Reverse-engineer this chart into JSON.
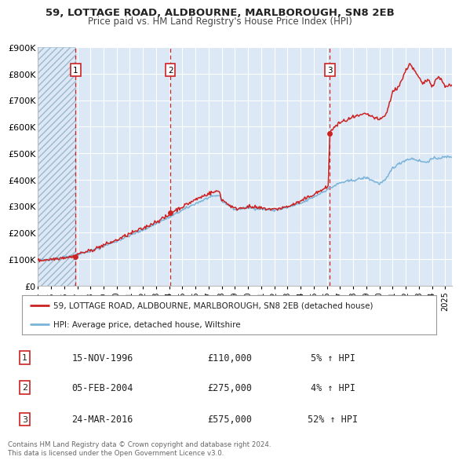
{
  "title": "59, LOTTAGE ROAD, ALDBOURNE, MARLBOROUGH, SN8 2EB",
  "subtitle": "Price paid vs. HM Land Registry's House Price Index (HPI)",
  "x_start": 1994.0,
  "x_end": 2025.5,
  "y_min": 0,
  "y_max": 900000,
  "y_ticks": [
    0,
    100000,
    200000,
    300000,
    400000,
    500000,
    600000,
    700000,
    800000,
    900000
  ],
  "y_labels": [
    "£0",
    "£100K",
    "£200K",
    "£300K",
    "£400K",
    "£500K",
    "£600K",
    "£700K",
    "£800K",
    "£900K"
  ],
  "sales": [
    {
      "date": 1996.877,
      "price": 110000,
      "label": "1"
    },
    {
      "date": 2004.09,
      "price": 275000,
      "label": "2"
    },
    {
      "date": 2016.23,
      "price": 575000,
      "label": "3"
    }
  ],
  "vline_dates": [
    1996.877,
    2004.09,
    2016.23
  ],
  "hpi_color": "#7ab4d8",
  "price_color": "#cc2222",
  "vline_color": "#cc2222",
  "bg_color": "#dce8f5",
  "grid_color": "#ffffff",
  "hatch_color": "#b0b8c8",
  "legend_entries": [
    "59, LOTTAGE ROAD, ALDBOURNE, MARLBOROUGH, SN8 2EB (detached house)",
    "HPI: Average price, detached house, Wiltshire"
  ],
  "table_rows": [
    {
      "num": "1",
      "date": "15-NOV-1996",
      "price": "£110,000",
      "hpi": "5% ↑ HPI"
    },
    {
      "num": "2",
      "date": "05-FEB-2004",
      "price": "£275,000",
      "hpi": "4% ↑ HPI"
    },
    {
      "num": "3",
      "date": "24-MAR-2016",
      "price": "£575,000",
      "hpi": "52% ↑ HPI"
    }
  ],
  "footer": "Contains HM Land Registry data © Crown copyright and database right 2024.\nThis data is licensed under the Open Government Licence v3.0.",
  "x_tick_years": [
    1994,
    1995,
    1996,
    1997,
    1998,
    1999,
    2000,
    2001,
    2002,
    2003,
    2004,
    2005,
    2006,
    2007,
    2008,
    2009,
    2010,
    2011,
    2012,
    2013,
    2014,
    2015,
    2016,
    2017,
    2018,
    2019,
    2020,
    2021,
    2022,
    2023,
    2024,
    2025
  ]
}
